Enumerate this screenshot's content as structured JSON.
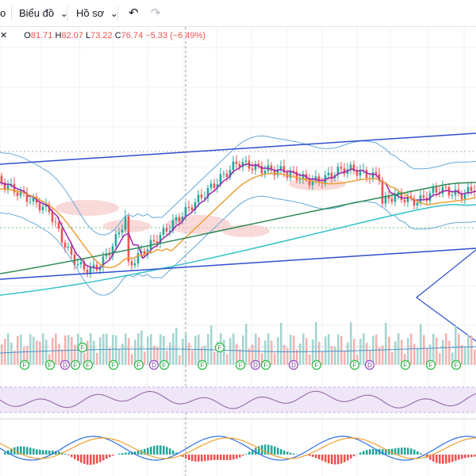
{
  "toolbar": {
    "frag_label": "o",
    "chart_menu_label": "Biểu đồ",
    "chart_menu_caret": "⌄",
    "profile_menu_label": "Hồ sơ",
    "profile_menu_caret": "⌄",
    "undo_icon": "undo-icon",
    "redo_icon": "redo-icon"
  },
  "legend": {
    "close_icon": "close-icon",
    "o_key": "O",
    "o_val": "81.71",
    "h_key": "H",
    "h_val": "82.07",
    "l_key": "L",
    "l_val": "73.22",
    "c_key": "C",
    "c_val": "76.74",
    "change": "−5.33 (−6.49%)"
  },
  "colors": {
    "up": "#26a69a",
    "down": "#ef5350",
    "channel": "#2f4fcf",
    "bb": "#66a9d9",
    "ma_short": "#9c27b0",
    "ma_mid": "#e8a23a",
    "ma_long": "#2e8b57",
    "ma_200": "#35c3c8",
    "cloud": "#f8c9c9",
    "rsi_band": "#efe6f7",
    "rsi_line": "#8e5ea2",
    "macd": "#2f6fdf",
    "signal": "#f0a030"
  },
  "chart_data": {
    "type": "candlestick",
    "series": [
      {
        "name": "price"
      },
      {
        "name": "volume"
      },
      {
        "name": "RSI"
      },
      {
        "name": "MACD"
      }
    ],
    "events_markers": {
      "F": [
        1,
        3,
        5,
        6,
        8,
        10,
        12,
        15,
        18,
        20,
        24,
        27,
        31,
        33,
        35
      ],
      "D": [
        4,
        11,
        19,
        22,
        28
      ]
    },
    "grid": true
  }
}
